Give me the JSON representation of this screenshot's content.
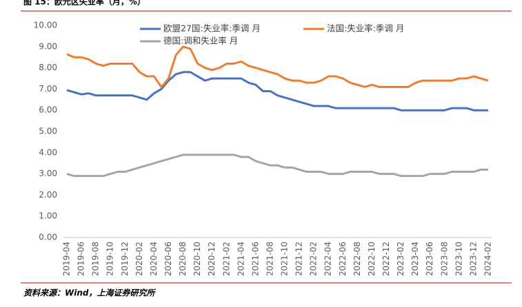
{
  "chart_data": {
    "type": "line",
    "title": "图 15：欧元区失业率（月，%）",
    "source": "资料来源：Wind，上海证券研究所",
    "categories": [
      "2019-04",
      null,
      "2019-06",
      null,
      "2019-08",
      null,
      "2019-10",
      null,
      "2019-12",
      null,
      "2020-02",
      null,
      "2020-04",
      null,
      "2020-06",
      null,
      "2020-08",
      null,
      "2020-10",
      null,
      "2020-12",
      null,
      "2021-02",
      null,
      "2021-04",
      null,
      "2021-06",
      null,
      "2021-08",
      null,
      "2021-10",
      null,
      "2021-12",
      null,
      "2022-02",
      null,
      "2022-04",
      null,
      "2022-06",
      null,
      "2022-08",
      null,
      "2022-10",
      null,
      "2022-12",
      null,
      "2023-02",
      null,
      "2023-04",
      null,
      "2023-06",
      null,
      "2023-08",
      null,
      "2023-10",
      null,
      "2023-12",
      null,
      "2024-02"
    ],
    "series": [
      {
        "name": "欧盟27国:失业率:季调 月",
        "color": "#4472c4",
        "values": [
          6.95,
          6.85,
          6.75,
          6.8,
          6.7,
          6.7,
          6.7,
          6.7,
          6.7,
          6.7,
          6.6,
          6.5,
          6.8,
          7.0,
          7.4,
          7.7,
          7.8,
          7.8,
          7.6,
          7.4,
          7.5,
          7.5,
          7.5,
          7.5,
          7.5,
          7.3,
          7.2,
          6.9,
          6.9,
          6.7,
          6.6,
          6.5,
          6.4,
          6.3,
          6.2,
          6.2,
          6.2,
          6.1,
          6.1,
          6.1,
          6.1,
          6.1,
          6.1,
          6.1,
          6.1,
          6.1,
          6.0,
          6.0,
          6.0,
          6.0,
          6.0,
          6.0,
          6.0,
          6.1,
          6.1,
          6.1,
          6.0,
          6.0,
          6.0
        ]
      },
      {
        "name": "法国:失业率:季调 月",
        "color": "#ed7d31",
        "values": [
          8.65,
          8.5,
          8.5,
          8.4,
          8.2,
          8.1,
          8.2,
          8.2,
          8.2,
          8.2,
          7.8,
          7.6,
          7.6,
          7.1,
          7.5,
          8.6,
          9.0,
          8.9,
          8.2,
          8.0,
          7.9,
          8.0,
          8.2,
          8.2,
          8.3,
          8.1,
          8.0,
          7.9,
          7.8,
          7.7,
          7.5,
          7.4,
          7.4,
          7.3,
          7.3,
          7.4,
          7.6,
          7.6,
          7.5,
          7.3,
          7.2,
          7.1,
          7.2,
          7.1,
          7.1,
          7.1,
          7.1,
          7.1,
          7.3,
          7.4,
          7.4,
          7.4,
          7.4,
          7.4,
          7.5,
          7.5,
          7.6,
          7.5,
          7.4
        ]
      },
      {
        "name": "德国:调和失业率 月",
        "color": "#a5a5a5",
        "values": [
          3.0,
          2.9,
          2.9,
          2.9,
          2.9,
          2.9,
          3.0,
          3.1,
          3.1,
          3.2,
          3.3,
          3.4,
          3.5,
          3.6,
          3.7,
          3.8,
          3.9,
          3.9,
          3.9,
          3.9,
          3.9,
          3.9,
          3.9,
          3.9,
          3.8,
          3.8,
          3.6,
          3.5,
          3.4,
          3.4,
          3.3,
          3.3,
          3.2,
          3.1,
          3.1,
          3.1,
          3.0,
          3.0,
          3.0,
          3.1,
          3.1,
          3.1,
          3.1,
          3.0,
          3.0,
          3.0,
          2.9,
          2.9,
          2.9,
          2.9,
          3.0,
          3.0,
          3.0,
          3.1,
          3.1,
          3.1,
          3.1,
          3.2,
          3.2
        ]
      }
    ],
    "ylim": [
      0,
      10
    ],
    "yticks": [
      {
        "value": 0,
        "label": "0.00"
      },
      {
        "value": 1,
        "label": "1.00"
      },
      {
        "value": 2,
        "label": "2.00"
      },
      {
        "value": 3,
        "label": "3.00"
      },
      {
        "value": 4,
        "label": "4.00"
      },
      {
        "value": 5,
        "label": "5.00"
      },
      {
        "value": 6,
        "label": "6.00"
      },
      {
        "value": 7,
        "label": "7.00"
      },
      {
        "value": 8,
        "label": "8.00"
      },
      {
        "value": 9,
        "label": "9.00"
      },
      {
        "value": 10,
        "label": "10.00"
      }
    ],
    "grid": false
  }
}
